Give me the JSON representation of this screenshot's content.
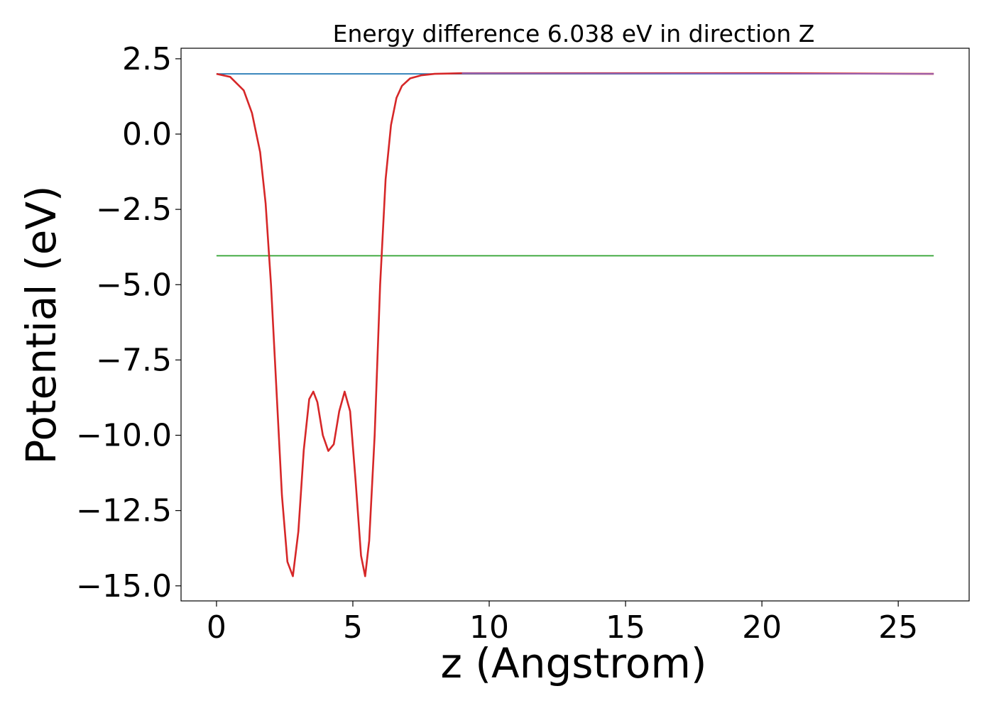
{
  "chart_data": {
    "type": "line",
    "title": "Energy difference 6.038 eV in direction Z",
    "xlabel": "z (Angstrom)",
    "ylabel": "Potential (eV)",
    "xlim": [
      -1.3,
      27.6
    ],
    "ylim": [
      -15.5,
      2.85
    ],
    "x_ticks": [
      0,
      5,
      10,
      15,
      20,
      25
    ],
    "x_tick_labels": [
      "0",
      "5",
      "10",
      "15",
      "20",
      "25"
    ],
    "y_ticks": [
      2.5,
      0.0,
      -2.5,
      -5.0,
      -7.5,
      -10.0,
      -12.5,
      -15.0
    ],
    "y_tick_labels": [
      "2.5",
      "0.0",
      "−2.5",
      "−5.0",
      "−7.5",
      "−10.0",
      "−12.5",
      "−15.0"
    ],
    "grid": false,
    "legend": false,
    "series": [
      {
        "color": "#1f77b4",
        "x": [
          0,
          26.3
        ],
        "y": [
          2.0,
          2.0
        ]
      },
      {
        "color": "#2ca02c",
        "x": [
          0,
          26.3
        ],
        "y": [
          -4.04,
          -4.04
        ]
      },
      {
        "color": "#d62728",
        "x": [
          0,
          0.5,
          1.0,
          1.3,
          1.6,
          1.8,
          2.0,
          2.2,
          2.4,
          2.6,
          2.8,
          3.0,
          3.2,
          3.4,
          3.55,
          3.7,
          3.9,
          4.1,
          4.3,
          4.5,
          4.7,
          4.9,
          5.1,
          5.3,
          5.45,
          5.6,
          5.8,
          6.0,
          6.2,
          6.4,
          6.6,
          6.8,
          7.1,
          7.5,
          8.0,
          9.0,
          10.0,
          15.0,
          20.0,
          26.3
        ],
        "y": [
          2.0,
          1.9,
          1.45,
          0.7,
          -0.6,
          -2.3,
          -5.0,
          -8.5,
          -12.0,
          -14.2,
          -14.68,
          -13.2,
          -10.5,
          -8.8,
          -8.55,
          -8.9,
          -10.0,
          -10.52,
          -10.3,
          -9.2,
          -8.55,
          -9.2,
          -11.5,
          -14.0,
          -14.68,
          -13.5,
          -10.0,
          -5.0,
          -1.5,
          0.3,
          1.2,
          1.6,
          1.85,
          1.95,
          2.0,
          2.02,
          2.02,
          2.02,
          2.02,
          2.0
        ]
      },
      {
        "color": "#9467bd",
        "x": [
          9.0,
          26.3
        ],
        "y": [
          2.02,
          2.0
        ]
      }
    ]
  }
}
